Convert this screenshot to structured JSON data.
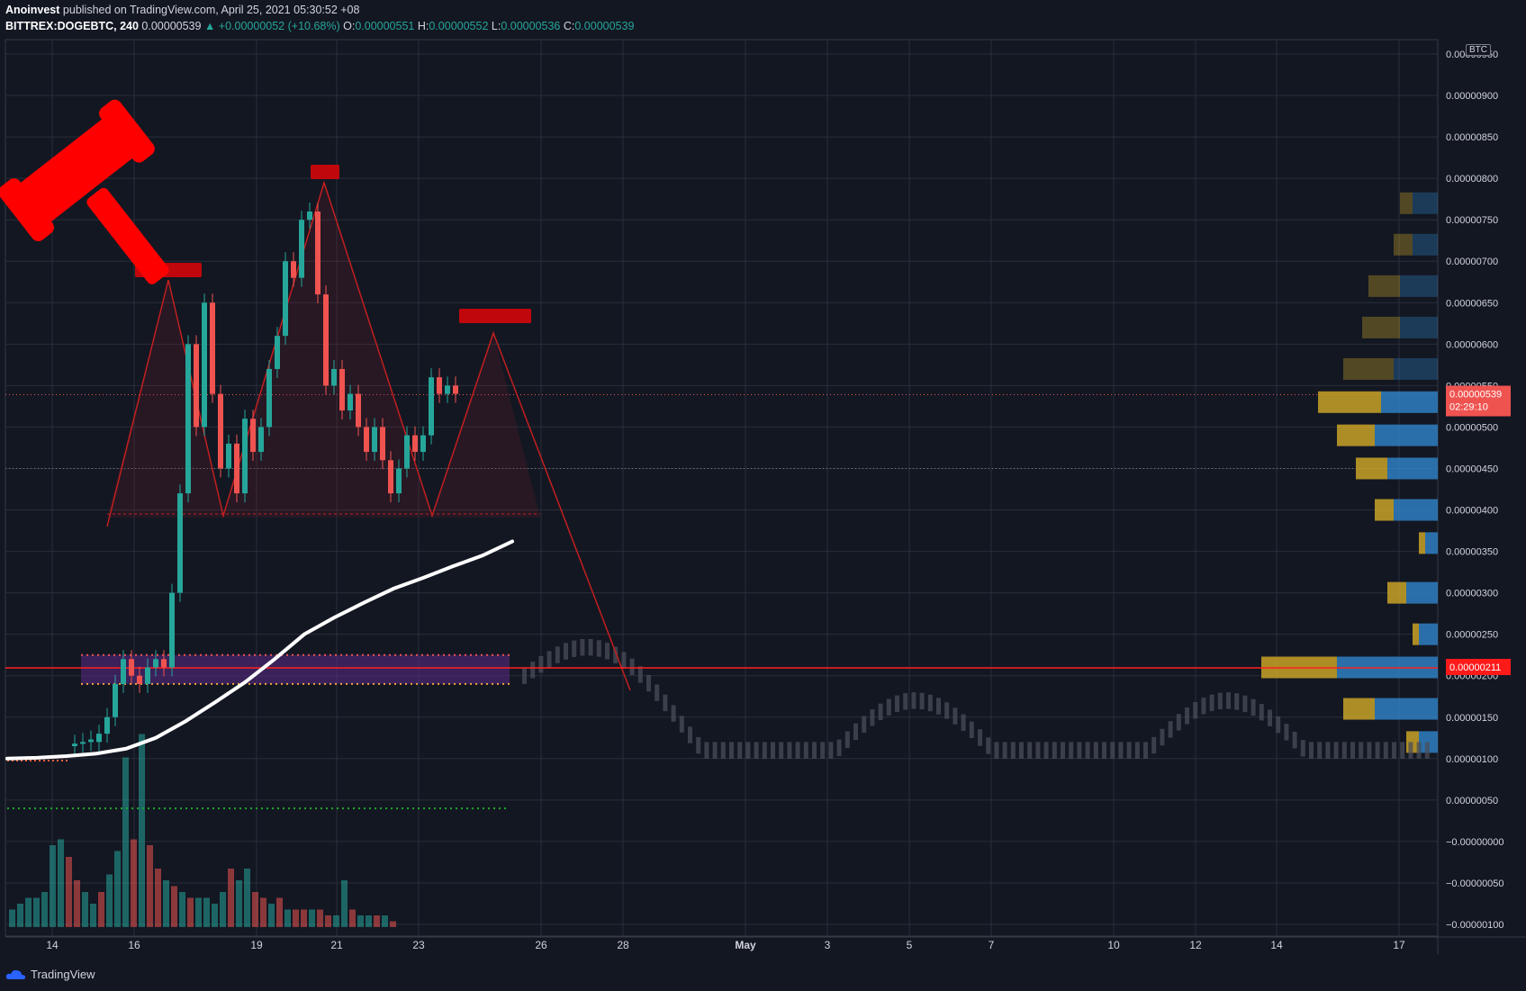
{
  "header": {
    "author": "Anoinvest",
    "published": "published on TradingView.com, April 25, 2021 05:30:52 +08",
    "symbol": "BITTREX:DOGEBTC, 240",
    "price": "0.00000539",
    "change": "▲ +0.00000052 (+10.68%)",
    "o_label": "O:",
    "o": "0.00000551",
    "h_label": "H:",
    "h": "0.00000552",
    "l_label": "L:",
    "l": "0.00000536",
    "c_label": "C:",
    "c": "0.00000539"
  },
  "footer": {
    "brand": "TradingView"
  },
  "colors": {
    "bg": "#131722",
    "grid": "#2a2e39",
    "up": "#26a69a",
    "down": "#ef5350",
    "pattern": "#c21f1f",
    "ma": "#ffffff",
    "vp_up": "#c9a227",
    "vp_down": "#2f7fc1"
  },
  "chart_data": {
    "type": "candlestick",
    "title": "BITTREX:DOGEBTC, 240",
    "currency_badge": "BTC",
    "ylim": [
      -1e-06,
      1e-05
    ],
    "y_ticks": [
      "0.00000950",
      "0.00000900",
      "0.00000850",
      "0.00000800",
      "0.00000750",
      "0.00000700",
      "0.00000650",
      "0.00000600",
      "0.00000550",
      "0.00000500",
      "0.00000450",
      "0.00000400",
      "0.00000350",
      "0.00000300",
      "0.00000250",
      "0.00000200",
      "0.00000150",
      "0.00000100",
      "0.00000050",
      "−0.00000000",
      "−0.00000050",
      "−0.00000100"
    ],
    "x_ticks": [
      "14",
      "16",
      "19",
      "21",
      "23",
      "26",
      "28",
      "May",
      "3",
      "5",
      "7",
      "10",
      "12",
      "14",
      "17"
    ],
    "price_labels": {
      "current": "0.00000539",
      "countdown": "02:29:10",
      "level": "0.00000211"
    },
    "candles": [
      [
        1.15e-06,
        1.18e-06
      ],
      [
        1.18e-06,
        1.2e-06
      ],
      [
        1.2e-06,
        1.23e-06
      ],
      [
        1.2e-06,
        1.3e-06
      ],
      [
        1.3e-06,
        1.5e-06
      ],
      [
        1.5e-06,
        1.9e-06
      ],
      [
        1.9e-06,
        2.2e-06
      ],
      [
        2.2e-06,
        2e-06
      ],
      [
        2e-06,
        1.9e-06
      ],
      [
        1.9e-06,
        2.1e-06
      ],
      [
        2.1e-06,
        2.2e-06
      ],
      [
        2.2e-06,
        2.1e-06
      ],
      [
        2.1e-06,
        3e-06
      ],
      [
        3e-06,
        4.2e-06
      ],
      [
        4.2e-06,
        6e-06
      ],
      [
        6e-06,
        5e-06
      ],
      [
        5e-06,
        6.5e-06
      ],
      [
        6.5e-06,
        5.4e-06
      ],
      [
        5.4e-06,
        4.5e-06
      ],
      [
        4.5e-06,
        4.8e-06
      ],
      [
        4.8e-06,
        4.2e-06
      ],
      [
        4.2e-06,
        5.1e-06
      ],
      [
        5.1e-06,
        4.7e-06
      ],
      [
        4.7e-06,
        5e-06
      ],
      [
        5e-06,
        5.7e-06
      ],
      [
        5.7e-06,
        6.1e-06
      ],
      [
        6.1e-06,
        7e-06
      ],
      [
        7e-06,
        6.8e-06
      ],
      [
        6.8e-06,
        7.5e-06
      ],
      [
        7.5e-06,
        7.6e-06
      ],
      [
        7.6e-06,
        6.6e-06
      ],
      [
        6.6e-06,
        5.5e-06
      ],
      [
        5.5e-06,
        5.7e-06
      ],
      [
        5.7e-06,
        5.2e-06
      ],
      [
        5.2e-06,
        5.4e-06
      ],
      [
        5.4e-06,
        5e-06
      ],
      [
        5e-06,
        4.7e-06
      ],
      [
        4.7e-06,
        5e-06
      ],
      [
        5e-06,
        4.6e-06
      ],
      [
        4.6e-06,
        4.2e-06
      ],
      [
        4.2e-06,
        4.5e-06
      ],
      [
        4.5e-06,
        4.9e-06
      ],
      [
        4.9e-06,
        4.7e-06
      ],
      [
        4.7e-06,
        4.9e-06
      ],
      [
        4.9e-06,
        5.6e-06
      ],
      [
        5.6e-06,
        5.4e-06
      ],
      [
        5.4e-06,
        5.5e-06
      ],
      [
        5.5e-06,
        5.4e-06
      ]
    ],
    "ma_series": [
      1e-06,
      1.01e-06,
      1.03e-06,
      1.06e-06,
      1.12e-06,
      1.25e-06,
      1.45e-06,
      1.68e-06,
      1.92e-06,
      2.2e-06,
      2.5e-06,
      2.7e-06,
      2.88e-06,
      3.05e-06,
      3.18e-06,
      3.32e-06,
      3.45e-06,
      3.62e-06
    ],
    "volume": [
      3,
      4,
      5,
      5,
      6,
      14,
      15,
      12,
      8,
      6,
      4,
      6,
      9,
      13,
      29,
      15,
      33,
      14,
      10,
      8,
      7,
      6,
      5,
      5,
      5,
      4,
      6,
      10,
      8,
      10,
      6,
      5,
      4,
      5,
      3,
      3,
      3,
      3,
      3,
      2,
      2,
      8,
      3,
      2,
      2,
      2,
      2,
      1
    ],
    "annotations": {
      "pattern": "head and shoulders",
      "neckline": 3.95e-06,
      "zone": [
        1.9e-06,
        2.25e-06
      ],
      "support_green": 4e-07
    },
    "volume_profile": [
      [
        7.7e-06,
        0.2,
        0.4
      ],
      [
        7.2e-06,
        0.3,
        0.4
      ],
      [
        6.7e-06,
        0.5,
        0.6
      ],
      [
        6.2e-06,
        0.6,
        0.6
      ],
      [
        5.7e-06,
        0.8,
        0.7
      ],
      [
        5.3e-06,
        1.0,
        0.9
      ],
      [
        4.9e-06,
        0.6,
        1.0
      ],
      [
        4.5e-06,
        0.5,
        0.8
      ],
      [
        4e-06,
        0.3,
        0.7
      ],
      [
        3.6e-06,
        0.1,
        0.2
      ],
      [
        3e-06,
        0.3,
        0.5
      ],
      [
        2.5e-06,
        0.1,
        0.3
      ],
      [
        2.1e-06,
        1.2,
        1.6
      ],
      [
        1.6e-06,
        0.5,
        1.0
      ],
      [
        1.2e-06,
        0.2,
        0.3
      ]
    ]
  }
}
